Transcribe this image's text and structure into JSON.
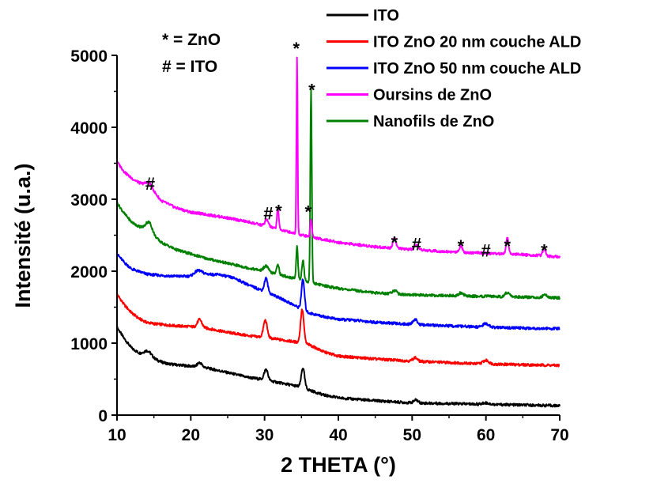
{
  "chart_data": {
    "type": "line",
    "xlabel": "2 THETA (°)",
    "ylabel": "Intensité (u.a.)",
    "xlim": [
      10,
      70
    ],
    "ylim": [
      0,
      5000
    ],
    "xticks": [
      10,
      20,
      30,
      40,
      50,
      60,
      70
    ],
    "yticks": [
      0,
      1000,
      2000,
      3000,
      4000,
      5000
    ],
    "legend_position": "top-right",
    "notes": [
      "* = ZnO",
      "# = ITO"
    ],
    "series": [
      {
        "name": "ITO",
        "color": "#000000",
        "base": [
          [
            10,
            1220
          ],
          [
            11,
            1060
          ],
          [
            12,
            930
          ],
          [
            13,
            860
          ],
          [
            14,
            830
          ],
          [
            15,
            780
          ],
          [
            16,
            740
          ],
          [
            17,
            710
          ],
          [
            18,
            700
          ],
          [
            19,
            690
          ],
          [
            20,
            680
          ],
          [
            22,
            660
          ],
          [
            25,
            590
          ],
          [
            28,
            520
          ],
          [
            29.5,
            500
          ],
          [
            31,
            470
          ],
          [
            33,
            430
          ],
          [
            34.5,
            400
          ],
          [
            36,
            350
          ],
          [
            38,
            280
          ],
          [
            40,
            240
          ],
          [
            45,
            200
          ],
          [
            50,
            170
          ],
          [
            55,
            160
          ],
          [
            60,
            150
          ],
          [
            65,
            140
          ],
          [
            70,
            130
          ]
        ],
        "peaks": [
          [
            14.2,
            70,
            0.5
          ],
          [
            21.2,
            60,
            0.3
          ],
          [
            30.2,
            150,
            0.25
          ],
          [
            35.2,
            280,
            0.22
          ],
          [
            50.5,
            40,
            0.3
          ],
          [
            60,
            20,
            0.4
          ]
        ]
      },
      {
        "name": "ITO ZnO 20 nm couche ALD",
        "color": "#ff0000",
        "base": [
          [
            10,
            1680
          ],
          [
            11,
            1530
          ],
          [
            12,
            1420
          ],
          [
            13,
            1340
          ],
          [
            14,
            1290
          ],
          [
            15,
            1270
          ],
          [
            16,
            1260
          ],
          [
            18,
            1240
          ],
          [
            20,
            1230
          ],
          [
            22,
            1210
          ],
          [
            25,
            1150
          ],
          [
            28,
            1100
          ],
          [
            30,
            1080
          ],
          [
            32,
            1050
          ],
          [
            34,
            1020
          ],
          [
            36,
            980
          ],
          [
            38,
            880
          ],
          [
            40,
            820
          ],
          [
            45,
            780
          ],
          [
            50,
            750
          ],
          [
            55,
            730
          ],
          [
            60,
            710
          ],
          [
            65,
            700
          ],
          [
            70,
            690
          ]
        ],
        "peaks": [
          [
            21.2,
            110,
            0.3
          ],
          [
            30.1,
            240,
            0.25
          ],
          [
            35.1,
            470,
            0.22
          ],
          [
            50.4,
            50,
            0.3
          ],
          [
            60,
            50,
            0.4
          ]
        ]
      },
      {
        "name": "ITO ZnO 50 nm couche ALD",
        "color": "#0000ff",
        "base": [
          [
            10,
            2240
          ],
          [
            11,
            2120
          ],
          [
            12,
            2030
          ],
          [
            14,
            1960
          ],
          [
            16,
            1940
          ],
          [
            18,
            1930
          ],
          [
            19,
            1930
          ],
          [
            20,
            1930
          ],
          [
            21,
            1950
          ],
          [
            22,
            1960
          ],
          [
            24,
            1950
          ],
          [
            26,
            1900
          ],
          [
            28,
            1800
          ],
          [
            29.5,
            1740
          ],
          [
            31,
            1680
          ],
          [
            33,
            1580
          ],
          [
            34.5,
            1500
          ],
          [
            36,
            1420
          ],
          [
            38,
            1370
          ],
          [
            40,
            1330
          ],
          [
            42,
            1320
          ],
          [
            45,
            1290
          ],
          [
            50,
            1260
          ],
          [
            55,
            1240
          ],
          [
            60,
            1220
          ],
          [
            65,
            1210
          ],
          [
            70,
            1200
          ]
        ],
        "peaks": [
          [
            21,
            60,
            0.5
          ],
          [
            30.2,
            190,
            0.22
          ],
          [
            35.2,
            420,
            0.2
          ],
          [
            50.4,
            70,
            0.3
          ],
          [
            60,
            50,
            0.4
          ]
        ]
      },
      {
        "name": "Oursins de ZnO",
        "color": "#ff00ff",
        "base": [
          [
            10,
            3520
          ],
          [
            11,
            3380
          ],
          [
            12,
            3290
          ],
          [
            13,
            3230
          ],
          [
            14,
            3200
          ],
          [
            15,
            3100
          ],
          [
            16,
            2980
          ],
          [
            18,
            2880
          ],
          [
            20,
            2820
          ],
          [
            22,
            2790
          ],
          [
            25,
            2740
          ],
          [
            28,
            2680
          ],
          [
            30,
            2630
          ],
          [
            32,
            2580
          ],
          [
            34,
            2530
          ],
          [
            36,
            2480
          ],
          [
            38,
            2440
          ],
          [
            40,
            2400
          ],
          [
            45,
            2340
          ],
          [
            50,
            2300
          ],
          [
            55,
            2270
          ],
          [
            60,
            2250
          ],
          [
            65,
            2230
          ],
          [
            70,
            2200
          ]
        ],
        "peaks": [
          [
            14.4,
            60,
            0.4
          ],
          [
            30.3,
            90,
            0.25
          ],
          [
            31.8,
            300,
            0.12
          ],
          [
            34.4,
            2450,
            0.08
          ],
          [
            36.3,
            250,
            0.12
          ],
          [
            47.6,
            150,
            0.2
          ],
          [
            50.6,
            60,
            0.3
          ],
          [
            56.6,
            90,
            0.2
          ],
          [
            62.9,
            230,
            0.17
          ],
          [
            67.9,
            100,
            0.2
          ]
        ]
      },
      {
        "name": "Nanofils de ZnO",
        "color": "#008000",
        "base": [
          [
            10,
            2950
          ],
          [
            11,
            2800
          ],
          [
            12,
            2680
          ],
          [
            13,
            2620
          ],
          [
            14,
            2600
          ],
          [
            15,
            2490
          ],
          [
            16,
            2400
          ],
          [
            18,
            2300
          ],
          [
            20,
            2240
          ],
          [
            22,
            2180
          ],
          [
            25,
            2110
          ],
          [
            28,
            2040
          ],
          [
            30,
            2000
          ],
          [
            32,
            1950
          ],
          [
            34,
            1900
          ],
          [
            36,
            1850
          ],
          [
            38,
            1800
          ],
          [
            40,
            1760
          ],
          [
            45,
            1700
          ],
          [
            50,
            1670
          ],
          [
            55,
            1660
          ],
          [
            60,
            1650
          ],
          [
            65,
            1640
          ],
          [
            70,
            1630
          ]
        ],
        "peaks": [
          [
            14.4,
            120,
            0.4
          ],
          [
            30.2,
            80,
            0.3
          ],
          [
            31.8,
            150,
            0.15
          ],
          [
            34.4,
            450,
            0.12
          ],
          [
            35.2,
            280,
            0.15
          ],
          [
            36.3,
            2700,
            0.1
          ],
          [
            47.6,
            50,
            0.3
          ],
          [
            56.6,
            40,
            0.3
          ],
          [
            62.9,
            60,
            0.3
          ],
          [
            68,
            40,
            0.3
          ]
        ]
      }
    ],
    "peak_labels": [
      {
        "text": "*",
        "x": 34.3,
        "y": 5100
      },
      {
        "text": "*",
        "x": 36.4,
        "y": 4520
      },
      {
        "text": "#",
        "x": 14.5,
        "y": 3220
      },
      {
        "text": "#",
        "x": 30.5,
        "y": 2810
      },
      {
        "text": "*",
        "x": 31.9,
        "y": 2840
      },
      {
        "text": "*",
        "x": 35.9,
        "y": 2830
      },
      {
        "text": "*",
        "x": 47.6,
        "y": 2400
      },
      {
        "text": "#",
        "x": 50.6,
        "y": 2380
      },
      {
        "text": "*",
        "x": 56.6,
        "y": 2350
      },
      {
        "text": "#",
        "x": 60.0,
        "y": 2290
      },
      {
        "text": "*",
        "x": 62.9,
        "y": 2350
      },
      {
        "text": "*",
        "x": 67.9,
        "y": 2290
      }
    ]
  }
}
